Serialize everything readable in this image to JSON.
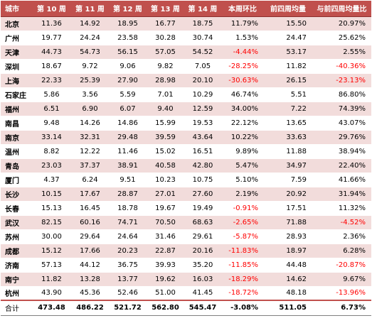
{
  "table": {
    "headers": [
      "城市",
      "第 10 周",
      "第 11 周",
      "第 12 周",
      "第 13 周",
      "第 14 周",
      "本周环比",
      "前四周均量",
      "与前四周均量比"
    ],
    "rows": [
      [
        "北京",
        "11.36",
        "14.92",
        "18.95",
        "16.77",
        "18.75",
        "11.79%",
        "15.50",
        "20.97%"
      ],
      [
        "广州",
        "19.77",
        "24.24",
        "23.58",
        "30.28",
        "30.74",
        "1.53%",
        "24.47",
        "25.62%"
      ],
      [
        "天津",
        "44.73",
        "54.73",
        "56.15",
        "57.05",
        "54.52",
        "-4.44%",
        "53.17",
        "2.55%"
      ],
      [
        "深圳",
        "18.67",
        "9.72",
        "9.06",
        "9.82",
        "7.05",
        "-28.25%",
        "11.82",
        "-40.36%"
      ],
      [
        "上海",
        "22.33",
        "25.39",
        "27.90",
        "28.98",
        "20.10",
        "-30.63%",
        "26.15",
        "-23.13%"
      ],
      [
        "石家庄",
        "5.86",
        "3.56",
        "5.59",
        "7.01",
        "10.29",
        "46.74%",
        "5.51",
        "86.80%"
      ],
      [
        "福州",
        "6.51",
        "6.90",
        "6.07",
        "9.40",
        "12.59",
        "34.00%",
        "7.22",
        "74.39%"
      ],
      [
        "南昌",
        "9.48",
        "14.26",
        "14.86",
        "15.99",
        "19.53",
        "22.12%",
        "13.65",
        "43.07%"
      ],
      [
        "南京",
        "33.14",
        "32.31",
        "29.48",
        "39.59",
        "43.64",
        "10.22%",
        "33.63",
        "29.76%"
      ],
      [
        "温州",
        "8.82",
        "12.22",
        "11.46",
        "15.02",
        "16.51",
        "9.89%",
        "11.88",
        "38.94%"
      ],
      [
        "青岛",
        "23.03",
        "37.37",
        "38.91",
        "40.58",
        "42.80",
        "5.47%",
        "34.97",
        "22.40%"
      ],
      [
        "厦门",
        "4.37",
        "6.24",
        "9.51",
        "10.23",
        "10.75",
        "5.10%",
        "7.59",
        "41.66%"
      ],
      [
        "长沙",
        "10.15",
        "17.67",
        "28.87",
        "27.01",
        "27.60",
        "2.19%",
        "20.92",
        "31.94%"
      ],
      [
        "长春",
        "15.13",
        "16.45",
        "18.78",
        "19.67",
        "19.49",
        "-0.91%",
        "17.51",
        "11.32%"
      ],
      [
        "武汉",
        "82.15",
        "60.16",
        "74.71",
        "70.50",
        "68.63",
        "-2.65%",
        "71.88",
        "-4.52%"
      ],
      [
        "苏州",
        "30.00",
        "29.64",
        "24.64",
        "31.46",
        "29.61",
        "-5.87%",
        "28.93",
        "2.36%"
      ],
      [
        "成都",
        "15.12",
        "17.66",
        "20.23",
        "22.87",
        "20.16",
        "-11.83%",
        "18.97",
        "6.28%"
      ],
      [
        "济南",
        "57.13",
        "44.12",
        "36.75",
        "39.93",
        "35.20",
        "-11.85%",
        "44.48",
        "-20.87%"
      ],
      [
        "南宁",
        "11.82",
        "13.28",
        "13.77",
        "19.62",
        "16.03",
        "-18.29%",
        "14.62",
        "9.67%"
      ],
      [
        "杭州",
        "43.90",
        "45.36",
        "52.46",
        "51.00",
        "41.45",
        "-18.72%",
        "48.18",
        "-13.96%"
      ]
    ],
    "total": [
      "合计",
      "473.48",
      "486.22",
      "521.72",
      "562.80",
      "545.47",
      "-3.08%",
      "511.05",
      "6.73%"
    ]
  },
  "colors": {
    "header_bg": "#c0504d",
    "stripe_bg": "#f2dcdb",
    "negative_text": "#ff0000"
  }
}
